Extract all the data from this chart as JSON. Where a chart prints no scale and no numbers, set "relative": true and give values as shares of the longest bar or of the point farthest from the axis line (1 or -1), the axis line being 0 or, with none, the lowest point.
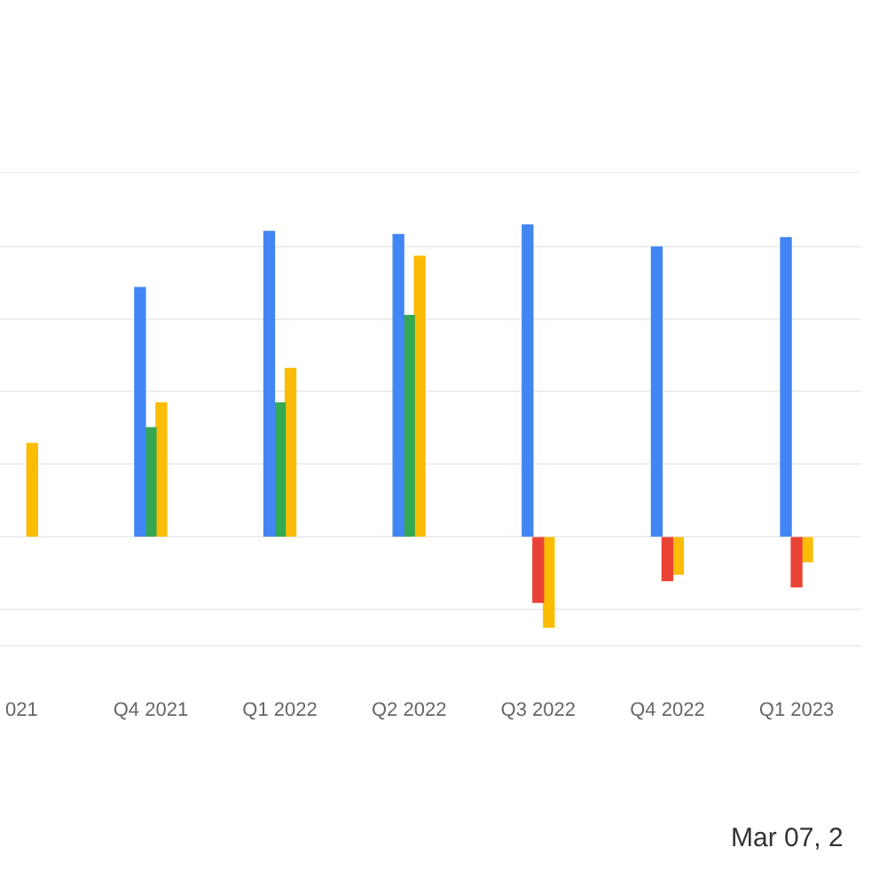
{
  "chart_data": {
    "type": "bar",
    "relative": true,
    "grid": "y",
    "categories": [
      "021",
      "Q4 2021",
      "Q1 2022",
      "Q2 2022",
      "Q3 2022",
      "Q4 2022",
      "Q1 2023"
    ],
    "series": [
      {
        "color": "#4285f4",
        "values": [
          null,
          0.8,
          0.98,
          0.97,
          1.0,
          0.93,
          0.96
        ]
      },
      {
        "colors": [
          "#34a853",
          "#34a853",
          "#34a853",
          "#34a853",
          "#ea4335",
          "#ea4335",
          "#ea4335"
        ],
        "values": [
          null,
          0.35,
          0.43,
          0.71,
          -0.21,
          -0.14,
          -0.16
        ]
      },
      {
        "color": "#fbbc04",
        "values": [
          0.3,
          0.43,
          0.54,
          0.9,
          -0.29,
          -0.12,
          -0.08
        ]
      }
    ],
    "annotations": [
      "Mar 07, 2"
    ]
  }
}
